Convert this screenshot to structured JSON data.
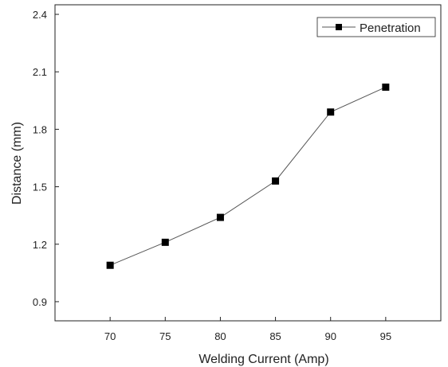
{
  "chart_data": {
    "type": "line",
    "title": "",
    "xlabel": "Welding Current  (Amp)",
    "ylabel": "Distance (mm)",
    "xlim": [
      65,
      100
    ],
    "ylim": [
      0.8,
      2.45
    ],
    "x_ticks": [
      70,
      75,
      80,
      85,
      90,
      95
    ],
    "x_tick_labels": [
      "70",
      "75",
      "80",
      "85",
      "90",
      "95"
    ],
    "y_ticks": [
      0.9,
      1.2,
      1.5,
      1.8,
      2.1,
      2.4
    ],
    "y_tick_labels": [
      "0.9",
      "1.2",
      "1.5",
      "1.8",
      "2.1",
      "2.4"
    ],
    "grid": false,
    "legend_position": "top-right",
    "series": [
      {
        "name": "Penetration",
        "marker": "square",
        "line_color": "#555555",
        "marker_color": "#000000",
        "x": [
          70,
          75,
          80,
          85,
          90,
          95
        ],
        "y": [
          1.09,
          1.21,
          1.34,
          1.53,
          1.89,
          2.02
        ]
      }
    ]
  }
}
